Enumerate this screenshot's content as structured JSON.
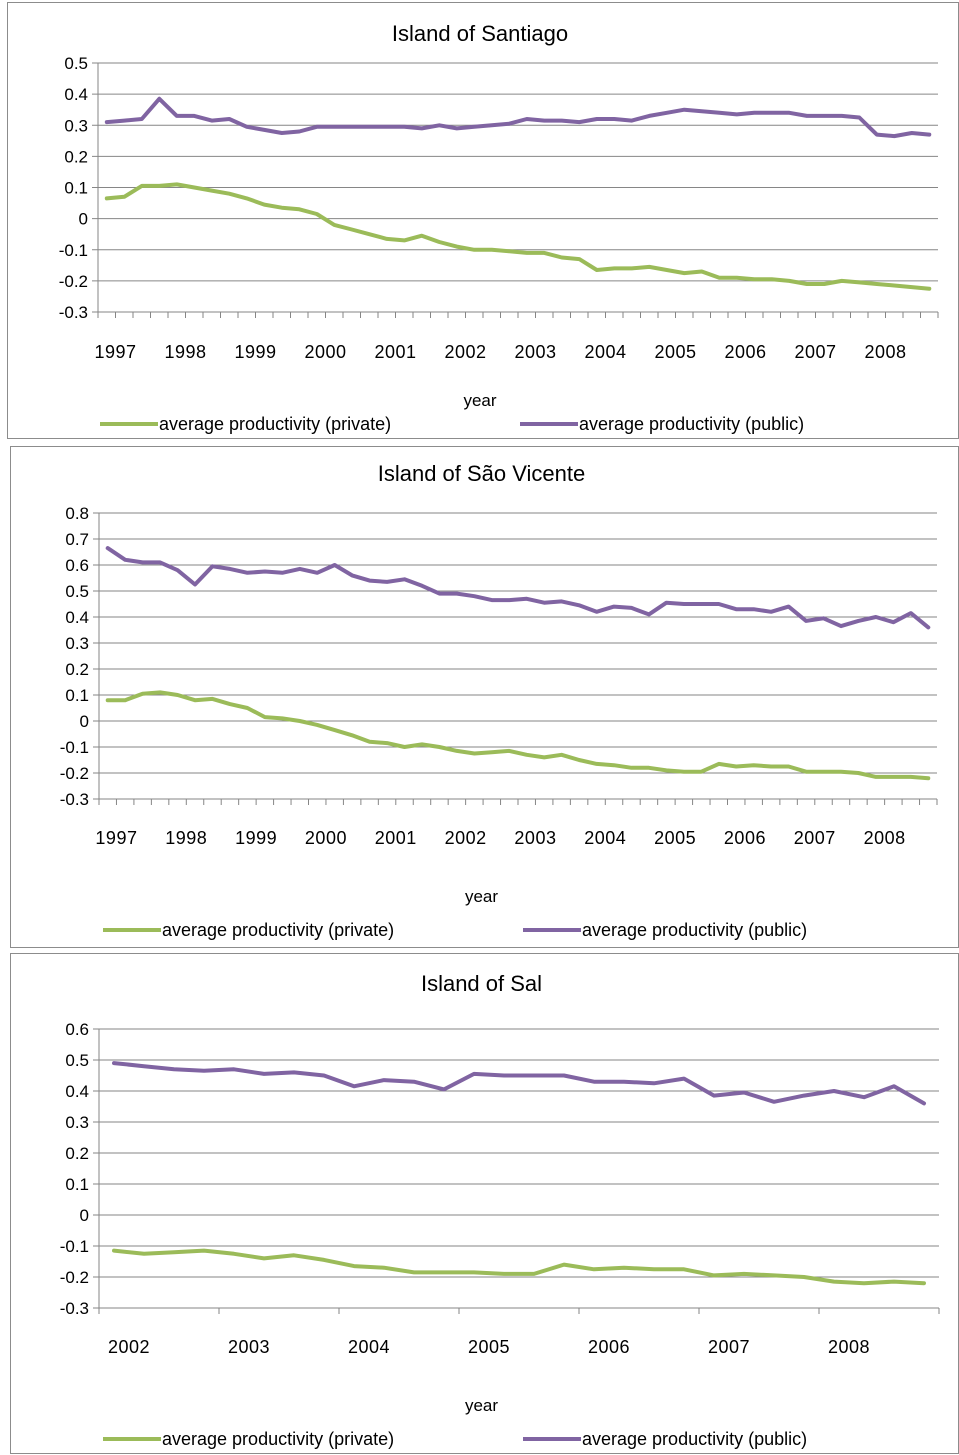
{
  "colors": {
    "private": "#9bbb59",
    "public": "#8064a2",
    "grid": "#868686",
    "axis": "#868686"
  },
  "chart_data": [
    {
      "type": "line",
      "title": "Island of Santiago",
      "xlabel": "year",
      "ylabel": "",
      "ylim": [
        -0.3,
        0.5
      ],
      "yticks": [
        "0.5",
        "0.4",
        "0.3",
        "0.2",
        "0.1",
        "0",
        "-0.1",
        "-0.2",
        "-0.3"
      ],
      "xtick_labels": [
        "1997",
        "1998",
        "1999",
        "2000",
        "2001",
        "2002",
        "2003",
        "2004",
        "2005",
        "2006",
        "2007",
        "2008"
      ],
      "grid": true,
      "legend": "bottom",
      "series": [
        {
          "name": "average productivity (private)",
          "values": [
            0.065,
            0.07,
            0.105,
            0.105,
            0.11,
            0.1,
            0.09,
            0.08,
            0.065,
            0.045,
            0.035,
            0.03,
            0.015,
            -0.02,
            -0.035,
            -0.05,
            -0.065,
            -0.07,
            -0.055,
            -0.075,
            -0.09,
            -0.1,
            -0.1,
            -0.105,
            -0.11,
            -0.11,
            -0.125,
            -0.13,
            -0.165,
            -0.16,
            -0.16,
            -0.155,
            -0.165,
            -0.175,
            -0.17,
            -0.19,
            -0.19,
            -0.195,
            -0.195,
            -0.2,
            -0.21,
            -0.21,
            -0.2,
            -0.205,
            -0.21,
            -0.215,
            -0.22,
            -0.225
          ]
        },
        {
          "name": "average productivity (public)",
          "values": [
            0.31,
            0.315,
            0.32,
            0.385,
            0.33,
            0.33,
            0.315,
            0.32,
            0.295,
            0.285,
            0.275,
            0.28,
            0.295,
            0.295,
            0.295,
            0.295,
            0.295,
            0.295,
            0.29,
            0.3,
            0.29,
            0.295,
            0.3,
            0.305,
            0.32,
            0.315,
            0.315,
            0.31,
            0.32,
            0.32,
            0.315,
            0.33,
            0.34,
            0.35,
            0.345,
            0.34,
            0.335,
            0.34,
            0.34,
            0.34,
            0.33,
            0.33,
            0.33,
            0.325,
            0.27,
            0.265,
            0.275,
            0.27
          ]
        }
      ]
    },
    {
      "type": "line",
      "title": "Island of São Vicente",
      "xlabel": "year",
      "ylabel": "",
      "ylim": [
        -0.3,
        0.8
      ],
      "yticks": [
        "0.8",
        "0.7",
        "0.6",
        "0.5",
        "0.4",
        "0.3",
        "0.2",
        "0.1",
        "0",
        "-0.1",
        "-0.2",
        "-0.3"
      ],
      "xtick_labels": [
        "1997",
        "1998",
        "1999",
        "2000",
        "2001",
        "2002",
        "2003",
        "2004",
        "2005",
        "2006",
        "2007",
        "2008"
      ],
      "grid": true,
      "legend": "bottom",
      "series": [
        {
          "name": "average productivity (private)",
          "values": [
            0.08,
            0.08,
            0.105,
            0.11,
            0.1,
            0.08,
            0.085,
            0.065,
            0.05,
            0.015,
            0.01,
            0.0,
            -0.015,
            -0.035,
            -0.055,
            -0.08,
            -0.085,
            -0.1,
            -0.09,
            -0.1,
            -0.115,
            -0.125,
            -0.12,
            -0.115,
            -0.13,
            -0.14,
            -0.13,
            -0.15,
            -0.165,
            -0.17,
            -0.18,
            -0.18,
            -0.19,
            -0.195,
            -0.195,
            -0.165,
            -0.175,
            -0.17,
            -0.175,
            -0.175,
            -0.195,
            -0.195,
            -0.195,
            -0.2,
            -0.215,
            -0.215,
            -0.215,
            -0.22
          ]
        },
        {
          "name": "average productivity (public)",
          "values": [
            0.665,
            0.62,
            0.61,
            0.61,
            0.58,
            0.525,
            0.595,
            0.585,
            0.57,
            0.575,
            0.57,
            0.585,
            0.57,
            0.6,
            0.56,
            0.54,
            0.535,
            0.545,
            0.52,
            0.49,
            0.49,
            0.48,
            0.465,
            0.465,
            0.47,
            0.455,
            0.46,
            0.445,
            0.42,
            0.44,
            0.435,
            0.41,
            0.455,
            0.45,
            0.45,
            0.45,
            0.43,
            0.43,
            0.42,
            0.44,
            0.385,
            0.395,
            0.365,
            0.385,
            0.4,
            0.38,
            0.415,
            0.36
          ]
        }
      ]
    },
    {
      "type": "line",
      "title": "Island of Sal",
      "xlabel": "year",
      "ylabel": "",
      "ylim": [
        -0.3,
        0.6
      ],
      "yticks": [
        "0.6",
        "0.5",
        "0.4",
        "0.3",
        "0.2",
        "0.1",
        "0",
        "-0.1",
        "-0.2",
        "-0.3"
      ],
      "xtick_labels": [
        "2002",
        "2003",
        "2004",
        "2005",
        "2006",
        "2007",
        "2008"
      ],
      "grid": true,
      "legend": "bottom",
      "series": [
        {
          "name": "average productivity (private)",
          "values": [
            -0.115,
            -0.125,
            -0.12,
            -0.115,
            -0.125,
            -0.14,
            -0.13,
            -0.145,
            -0.165,
            -0.17,
            -0.185,
            -0.185,
            -0.185,
            -0.19,
            -0.19,
            -0.16,
            -0.175,
            -0.17,
            -0.175,
            -0.175,
            -0.195,
            -0.19,
            -0.195,
            -0.2,
            -0.215,
            -0.22,
            -0.215,
            -0.22
          ]
        },
        {
          "name": "average productivity (public)",
          "values": [
            0.49,
            0.48,
            0.47,
            0.465,
            0.47,
            0.455,
            0.46,
            0.45,
            0.415,
            0.435,
            0.43,
            0.405,
            0.455,
            0.45,
            0.45,
            0.45,
            0.43,
            0.43,
            0.425,
            0.44,
            0.385,
            0.395,
            0.365,
            0.385,
            0.4,
            0.38,
            0.415,
            0.36
          ]
        }
      ]
    }
  ]
}
